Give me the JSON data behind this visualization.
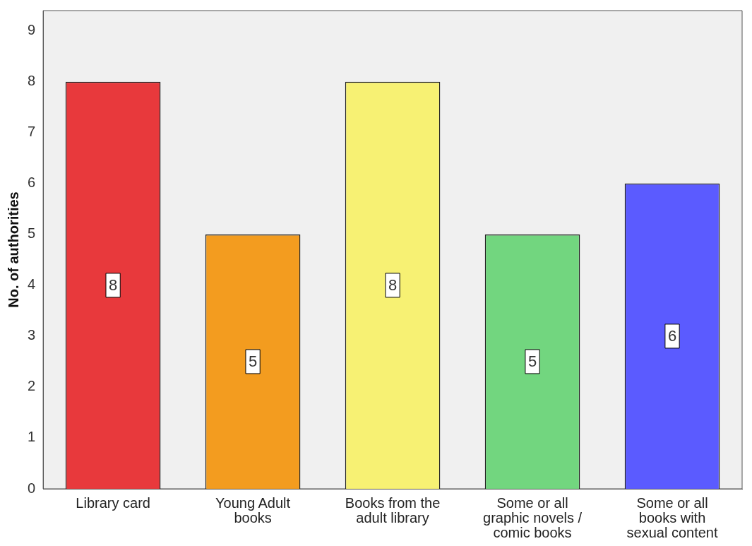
{
  "chart_data": {
    "type": "bar",
    "ylabel": "No. of authorities",
    "categories": [
      "Library card",
      "Young Adult books",
      "Books from the adult library",
      "Some or all graphic novels / comic books",
      "Some or all books with sexual content"
    ],
    "values": [
      8,
      5,
      8,
      5,
      6
    ],
    "colors": [
      "#e8393c",
      "#f39c1f",
      "#f7f173",
      "#72d67f",
      "#5b5bff"
    ],
    "ylim": [
      0,
      9.4
    ],
    "yticks": [
      0,
      1,
      2,
      3,
      4,
      5,
      6,
      7,
      8,
      9
    ],
    "grid": false,
    "legend": false,
    "data_labels": true
  }
}
